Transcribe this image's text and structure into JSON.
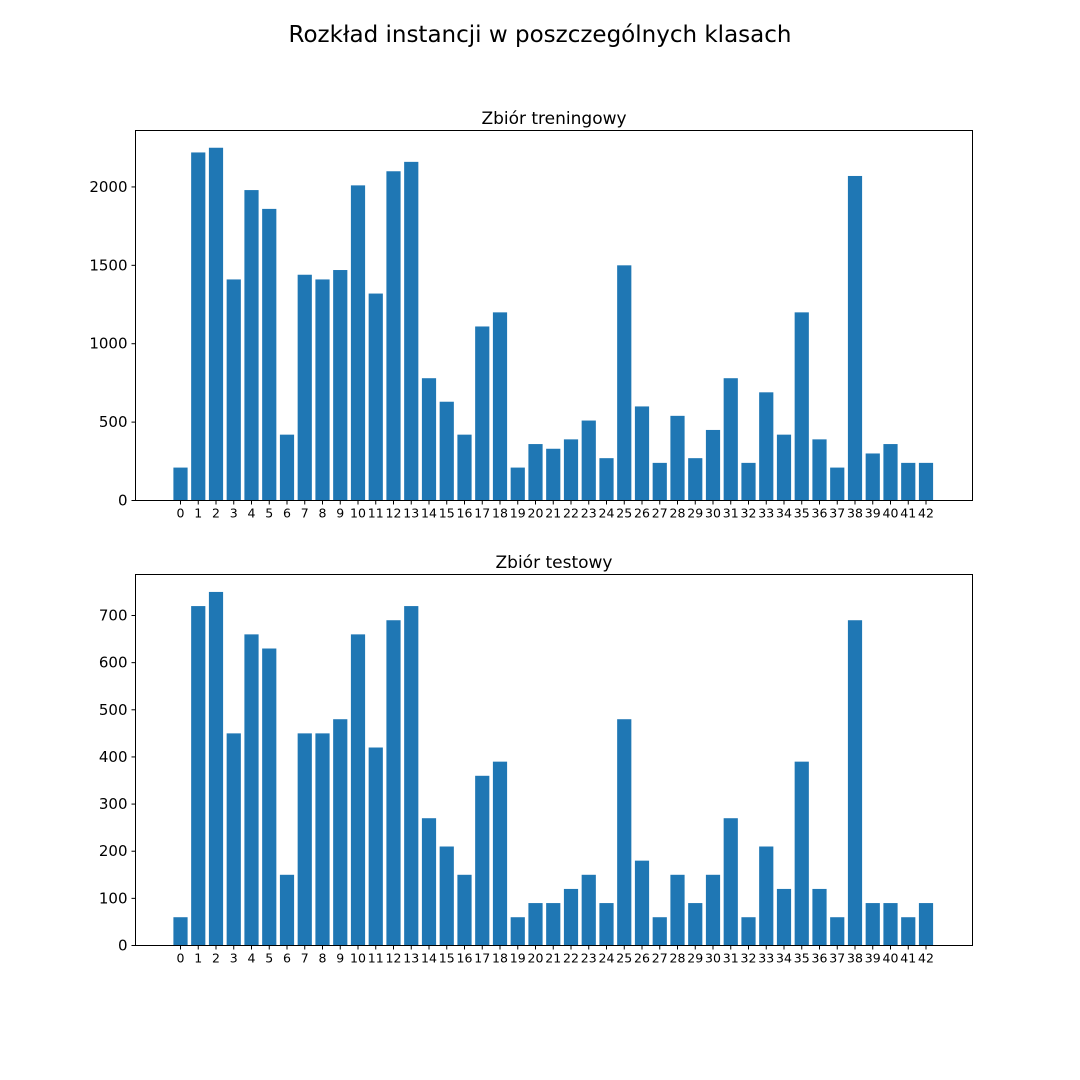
{
  "figure": {
    "title": "Rozkład instancji w poszczególnych klasach"
  },
  "colors": {
    "bar": "#1f77b4"
  },
  "chart_data": [
    {
      "type": "bar",
      "title": "Zbiór treningowy",
      "xlabel": "",
      "ylabel": "",
      "ylim": [
        0,
        2360
      ],
      "yticks": [
        0,
        500,
        1000,
        1500,
        2000
      ],
      "grid": false,
      "categories": [
        "0",
        "1",
        "2",
        "3",
        "4",
        "5",
        "6",
        "7",
        "8",
        "9",
        "10",
        "11",
        "12",
        "13",
        "14",
        "15",
        "16",
        "17",
        "18",
        "19",
        "20",
        "21",
        "22",
        "23",
        "24",
        "25",
        "26",
        "27",
        "28",
        "29",
        "30",
        "31",
        "32",
        "33",
        "34",
        "35",
        "36",
        "37",
        "38",
        "39",
        "40",
        "41",
        "42"
      ],
      "values": [
        210,
        2220,
        2250,
        1410,
        1980,
        1860,
        420,
        1440,
        1410,
        1470,
        2010,
        1320,
        2100,
        2160,
        780,
        630,
        420,
        1110,
        1200,
        210,
        360,
        330,
        390,
        510,
        270,
        1500,
        600,
        240,
        540,
        270,
        450,
        780,
        240,
        690,
        420,
        1200,
        390,
        210,
        2070,
        300,
        360,
        240,
        240
      ]
    },
    {
      "type": "bar",
      "title": "Zbiór testowy",
      "xlabel": "",
      "ylabel": "",
      "ylim": [
        0,
        787
      ],
      "yticks": [
        0,
        100,
        200,
        300,
        400,
        500,
        600,
        700
      ],
      "grid": false,
      "categories": [
        "0",
        "1",
        "2",
        "3",
        "4",
        "5",
        "6",
        "7",
        "8",
        "9",
        "10",
        "11",
        "12",
        "13",
        "14",
        "15",
        "16",
        "17",
        "18",
        "19",
        "20",
        "21",
        "22",
        "23",
        "24",
        "25",
        "26",
        "27",
        "28",
        "29",
        "30",
        "31",
        "32",
        "33",
        "34",
        "35",
        "36",
        "37",
        "38",
        "39",
        "40",
        "41",
        "42"
      ],
      "values": [
        60,
        720,
        750,
        450,
        660,
        630,
        150,
        450,
        450,
        480,
        660,
        420,
        690,
        720,
        270,
        210,
        150,
        360,
        390,
        60,
        90,
        90,
        120,
        150,
        90,
        480,
        180,
        60,
        150,
        90,
        150,
        270,
        60,
        210,
        120,
        390,
        120,
        60,
        690,
        90,
        90,
        60,
        90
      ]
    }
  ]
}
